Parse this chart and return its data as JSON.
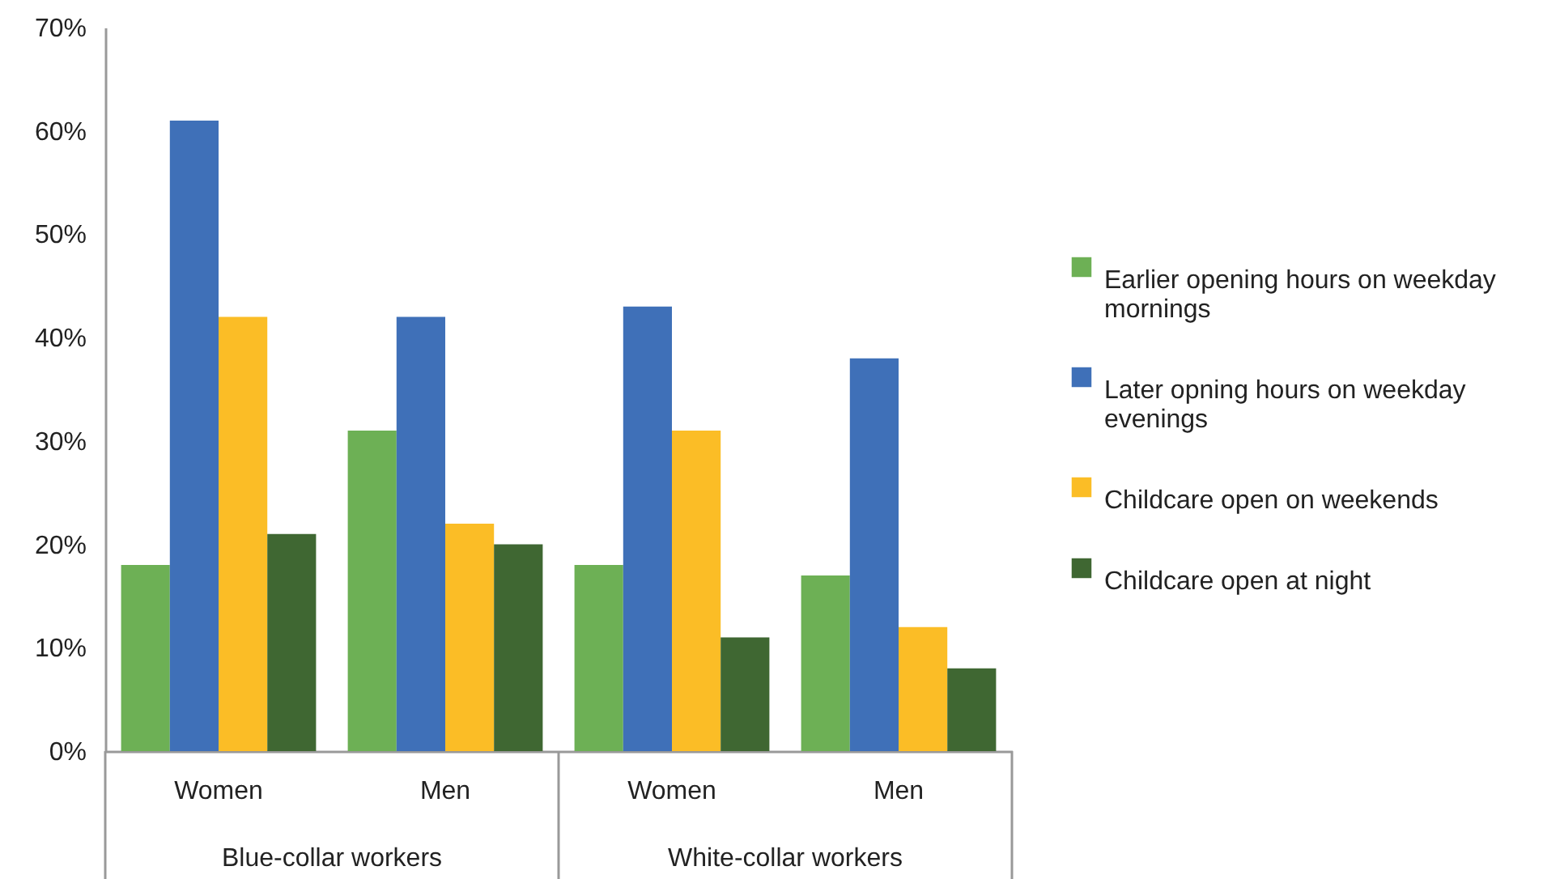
{
  "chart_data": {
    "type": "bar",
    "categories": [
      "Women",
      "Men",
      "Women",
      "Men"
    ],
    "series": [
      {
        "name": "Earlier opening hours on weekday mornings",
        "color": "#6db055",
        "values": [
          18,
          31,
          18,
          17
        ]
      },
      {
        "name": "Later opning hours on weekday evenings",
        "color": "#3f70b8",
        "values": [
          61,
          42,
          43,
          38
        ]
      },
      {
        "name": "Childcare open on weekends",
        "color": "#fbbd26",
        "values": [
          42,
          22,
          31,
          12
        ]
      },
      {
        "name": "Childcare open at night",
        "color": "#3f6732",
        "values": [
          21,
          20,
          11,
          8
        ]
      }
    ],
    "annotations": [
      "Blue-collar workers",
      "White-collar workers"
    ],
    "ylim": [
      0,
      70
    ],
    "yticks": [
      {
        "value": 0,
        "label": "0%"
      },
      {
        "value": 10,
        "label": "10%"
      },
      {
        "value": 20,
        "label": "20%"
      },
      {
        "value": 30,
        "label": "30%"
      },
      {
        "value": 40,
        "label": "40%"
      },
      {
        "value": 50,
        "label": "50%"
      },
      {
        "value": 60,
        "label": "60%"
      },
      {
        "value": 70,
        "label": "70%"
      }
    ],
    "grid": false,
    "legend": "right"
  }
}
